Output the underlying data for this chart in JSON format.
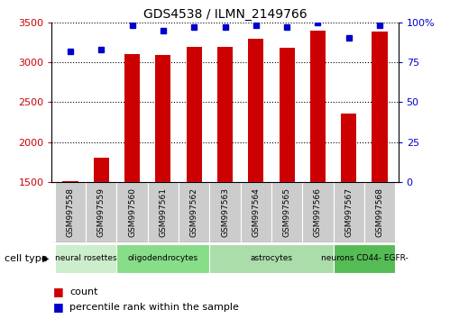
{
  "title": "GDS4538 / ILMN_2149766",
  "samples": [
    "GSM997558",
    "GSM997559",
    "GSM997560",
    "GSM997561",
    "GSM997562",
    "GSM997563",
    "GSM997564",
    "GSM997565",
    "GSM997566",
    "GSM997567",
    "GSM997568"
  ],
  "counts": [
    1505,
    1800,
    3100,
    3090,
    3195,
    3195,
    3290,
    3185,
    3400,
    2360,
    3390
  ],
  "percentile_ranks": [
    82,
    83,
    98,
    95,
    97,
    97,
    98,
    97,
    100,
    90,
    98
  ],
  "ylim_left": [
    1500,
    3500
  ],
  "ylim_right": [
    0,
    100
  ],
  "yticks_left": [
    1500,
    2000,
    2500,
    3000,
    3500
  ],
  "yticks_right": [
    0,
    25,
    50,
    75,
    100
  ],
  "cell_types": [
    {
      "label": "neural rosettes",
      "start": 0,
      "end": 2,
      "color": "#cceecc"
    },
    {
      "label": "oligodendrocytes",
      "start": 2,
      "end": 5,
      "color": "#99dd99"
    },
    {
      "label": "astrocytes",
      "start": 5,
      "end": 9,
      "color": "#88cc88"
    },
    {
      "label": "neurons CD44- EGFR-",
      "start": 9,
      "end": 11,
      "color": "#55bb55"
    }
  ],
  "bar_color": "#cc0000",
  "scatter_color": "#0000cc",
  "left_axis_color": "#cc0000",
  "right_axis_color": "#0000cc",
  "background_color": "#ffffff",
  "tick_bg_color": "#cccccc",
  "legend_red_label": "count",
  "legend_blue_label": "percentile rank within the sample",
  "cell_type_label": "cell type"
}
